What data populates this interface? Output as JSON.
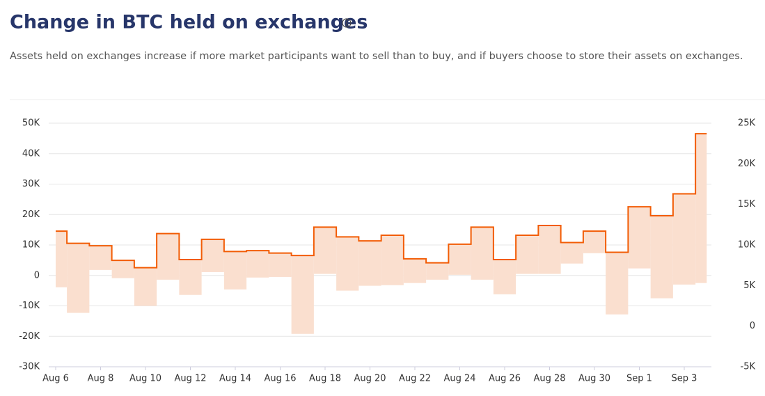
{
  "chart_data": {
    "type": "step",
    "title": "Change in BTC held on exchanges",
    "subtitle": "Assets held on exchanges increase if more market participants want to sell than to buy, and if buyers choose to store their assets on exchanges.",
    "categories": [
      "Aug 6",
      null,
      "Aug 8",
      null,
      "Aug 10",
      null,
      "Aug 12",
      null,
      "Aug 14",
      null,
      "Aug 16",
      null,
      "Aug 18",
      null,
      "Aug 20",
      null,
      "Aug 22",
      null,
      "Aug 24",
      null,
      "Aug 26",
      null,
      "Aug 28",
      null,
      "Aug 30",
      null,
      "Sep 1",
      null,
      "Sep 3",
      null
    ],
    "series": [
      {
        "color": "#fadfcf",
        "axis": "y",
        "values": [
          -3900,
          -12300,
          1800,
          -900,
          -10000,
          -1400,
          -6400,
          1100,
          -4600,
          -700,
          -500,
          -19200,
          500,
          -5000,
          -3400,
          -3200,
          -2500,
          -1400,
          200,
          -1400,
          -6200,
          500,
          500,
          3900,
          7300,
          -12800,
          2300,
          -7500,
          -3000,
          -2500
        ]
      },
      {
        "color": "#f25c05",
        "axis": "y2",
        "values": [
          11700,
          10200,
          9900,
          8100,
          7200,
          11400,
          8200,
          10700,
          9200,
          9300,
          9000,
          8700,
          12200,
          11000,
          10500,
          11200,
          8300,
          7800,
          10100,
          12200,
          8200,
          11200,
          12400,
          10300,
          11700,
          9100,
          14700,
          13600,
          16300,
          23700
        ]
      }
    ],
    "ylim": [
      -30000,
      50000
    ],
    "yticks": [
      {
        "value": -30000,
        "label": "-30K"
      },
      {
        "value": -20000,
        "label": "-20K"
      },
      {
        "value": -10000,
        "label": "-10K"
      },
      0,
      {
        "value": 10000,
        "label": "10K"
      },
      {
        "value": 20000,
        "label": "20K"
      },
      {
        "value": 30000,
        "label": "30K"
      },
      {
        "value": 40000,
        "label": "40K"
      },
      {
        "value": 50000,
        "label": "50K"
      }
    ],
    "y2lim": [
      -5000,
      25000
    ],
    "y2ticks": [
      {
        "value": -5000,
        "label": "-5K"
      },
      0,
      {
        "value": 5000,
        "label": "5K"
      },
      {
        "value": 10000,
        "label": "10K"
      },
      {
        "value": 15000,
        "label": "15K"
      },
      {
        "value": 20000,
        "label": "20K"
      },
      {
        "value": 25000,
        "label": "25K"
      }
    ],
    "grid": true
  }
}
